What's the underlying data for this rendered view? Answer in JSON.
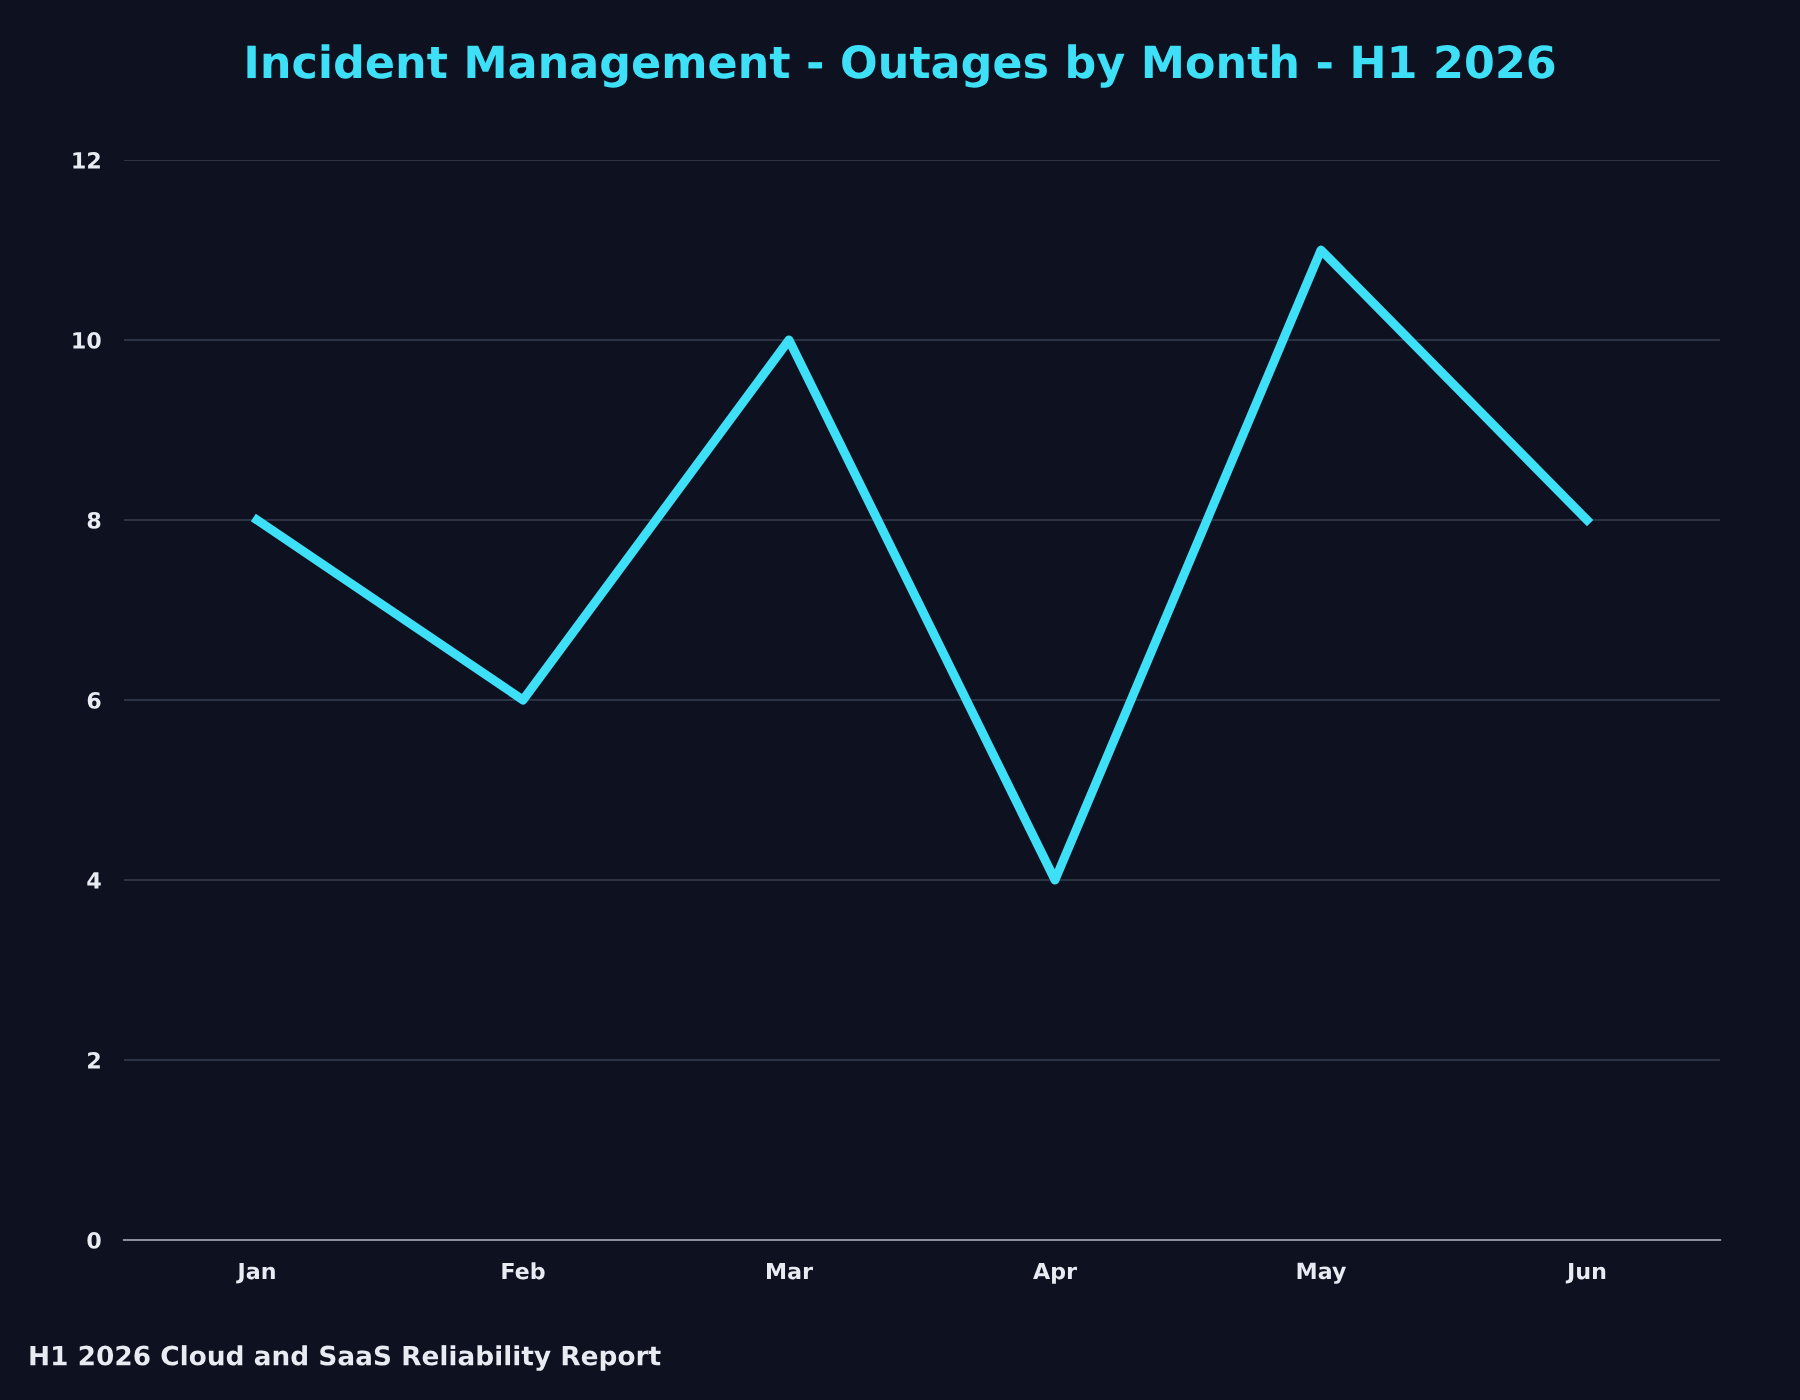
{
  "chart_data": {
    "type": "line",
    "title": "Incident Management - Outages by Month - H1 2026",
    "categories": [
      "Jan",
      "Feb",
      "Mar",
      "Apr",
      "May",
      "Jun"
    ],
    "series": [
      {
        "color": "#3ee0f8",
        "values": [
          8,
          6,
          10,
          4,
          11,
          8
        ]
      }
    ],
    "ylim": [
      0,
      12
    ],
    "yticks": [
      0,
      2,
      4,
      6,
      8,
      10,
      12
    ],
    "grid": "y",
    "marker": "none",
    "line_style": "solid",
    "annotations": [
      "H1 2026 Cloud and SaaS Reliability Report"
    ]
  }
}
